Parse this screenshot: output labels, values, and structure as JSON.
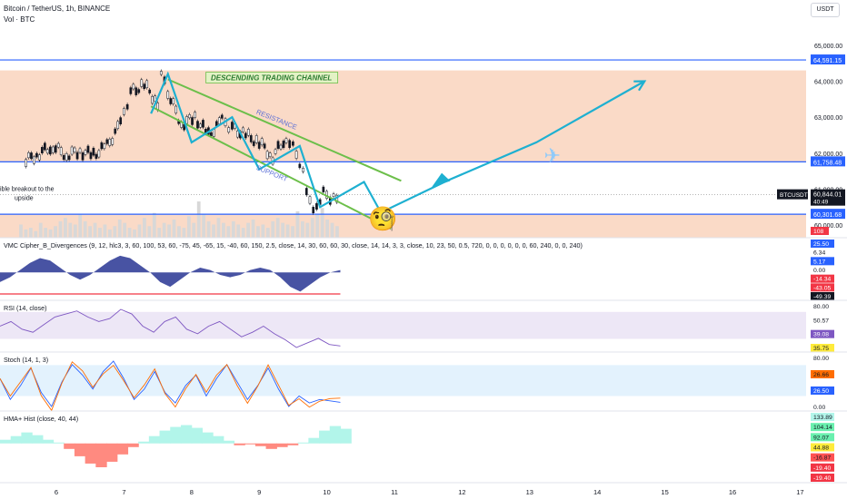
{
  "header": {
    "symbol_line": "Bitcoin / TetherUS, 1h, BINANCE",
    "volume_label": "Vol · BTC",
    "currency_button": "USDT"
  },
  "annotations": {
    "channel_label": "DESCENDING TRADING CHANNEL",
    "resistance": "RESISTANCE",
    "support": "SUPPORT",
    "breakout_note_1": "ible breakout to the",
    "breakout_note_2": "upside",
    "emoji_face": "🧐",
    "emoji_plane": "✈"
  },
  "colors": {
    "zone_fill": "#f9d3bd",
    "level_line": "#2962ff",
    "channel_line": "#6cbf4a",
    "path_line": "#1eb0d1",
    "up_candle": "#131722",
    "down_candle": "#131722",
    "volume_bar": "#d8d8d8"
  },
  "chart_data": {
    "type": "line",
    "x_ticks": [
      "6",
      "7",
      "8",
      "9",
      "10",
      "11",
      "12",
      "13",
      "14",
      "15",
      "16",
      "17"
    ],
    "price_axis": {
      "ticks": [
        "65,000.00",
        "64,000.00",
        "63,000.00",
        "62,000.00",
        "61,000.00",
        "60,000.00"
      ],
      "tick_values": [
        65000,
        64000,
        63000,
        62000,
        61000,
        60000
      ],
      "ylim": [
        59650,
        65500
      ]
    },
    "horizontal_levels": [
      {
        "value": 64591.15,
        "label": "64,591.15"
      },
      {
        "value": 61758.48,
        "label": "61,758.48"
      },
      {
        "value": 60301.68,
        "label": "60,301.68"
      }
    ],
    "current_price": {
      "symbol": "BTCUSDT",
      "value": "60,844.01",
      "countdown": "40:49"
    },
    "zones": [
      {
        "from": 61758.48,
        "to": 64300
      },
      {
        "from": 59650,
        "to": 60301.68
      }
    ],
    "price_series": {
      "x": [
        5.55,
        5.75,
        5.95,
        6.15,
        6.35,
        6.55,
        6.75,
        6.95,
        7.1,
        7.3,
        7.5,
        7.55,
        7.65,
        7.85,
        8.05,
        8.25,
        8.45,
        8.6,
        8.8,
        9.0,
        9.2,
        9.4,
        9.55,
        9.65,
        9.75,
        9.85,
        9.95,
        10.05,
        10.2
      ],
      "close": [
        61800,
        62000,
        62200,
        61950,
        62050,
        61950,
        62200,
        62800,
        63700,
        63900,
        63400,
        64350,
        63700,
        62800,
        63000,
        62500,
        62900,
        62700,
        62500,
        62300,
        61900,
        62450,
        62000,
        61500,
        60600,
        60400,
        60900,
        60650,
        60850
      ]
    },
    "channel_lines": [
      {
        "from": [
          7.65,
          64050
        ],
        "to": [
          11.1,
          61230
        ]
      },
      {
        "from": [
          7.4,
          63300
        ],
        "to": [
          10.95,
          59900
        ]
      }
    ],
    "drawn_path": [
      [
        7.4,
        63100
      ],
      [
        7.65,
        64200
      ],
      [
        8.0,
        62300
      ],
      [
        8.6,
        63000
      ],
      [
        9.0,
        61550
      ],
      [
        9.6,
        62200
      ],
      [
        9.9,
        60500
      ],
      [
        10.55,
        61200
      ],
      [
        10.8,
        60350
      ],
      [
        11.8,
        61250
      ],
      [
        13.1,
        62300
      ],
      [
        14.7,
        64000
      ]
    ],
    "volume_series": [
      8,
      5,
      6,
      4,
      9,
      6,
      5,
      7,
      10,
      12,
      9,
      8,
      14,
      10,
      7,
      9,
      6,
      8,
      5,
      7,
      11,
      9,
      6,
      5,
      8,
      12,
      7,
      15,
      6,
      9,
      8,
      11,
      7,
      6,
      13,
      9,
      22,
      14,
      10,
      8,
      12,
      9,
      7,
      10,
      8,
      6,
      9,
      11,
      7,
      8,
      6,
      10,
      12,
      9,
      8,
      7,
      16,
      10,
      9,
      12,
      14,
      18,
      11,
      9,
      7
    ],
    "indicators": [
      {
        "name": "VMC Cipher_B_Divergences (9, 12, hlc3, 3, 60, 100, 53, 60, -75, 45, -65, 15, -40, 60, 150, 2.5, close, 14, 30, 60, 60, 30, close, 14, 14, 3, 3, close, 10, 23, 50, 0.5, 720, 0, 0, 0, 0, 0, 0, 60, 240, 0, 0, 240)",
        "ticks": [
          "25.50",
          "6.34",
          "5.17",
          "0.00",
          "-14.34",
          "-43.05",
          "-49.39"
        ],
        "top_value": "108",
        "values": [
          -20,
          -10,
          5,
          20,
          30,
          25,
          10,
          -5,
          -15,
          -5,
          10,
          25,
          35,
          30,
          15,
          0,
          -20,
          -30,
          -15,
          0,
          10,
          5,
          -5,
          -10,
          -5,
          5,
          10,
          5,
          -10,
          -30,
          -40,
          -25,
          -10,
          0,
          5
        ]
      },
      {
        "name": "RSI (14, close)",
        "ticks": [
          "80.00",
          "50.57",
          "39.08",
          "35.75"
        ],
        "values": [
          52,
          55,
          50,
          48,
          53,
          58,
          60,
          62,
          58,
          55,
          57,
          63,
          60,
          52,
          48,
          55,
          58,
          50,
          47,
          52,
          55,
          50,
          45,
          48,
          52,
          47,
          43,
          38,
          41,
          44,
          40,
          39
        ]
      },
      {
        "name": "Stoch (14, 1, 3)",
        "ticks": [
          "80.00",
          "26.66",
          "26.50",
          "0.00"
        ],
        "values": [
          60,
          30,
          50,
          75,
          40,
          20,
          55,
          80,
          65,
          45,
          70,
          85,
          60,
          30,
          45,
          70,
          40,
          25,
          50,
          65,
          35,
          60,
          80,
          55,
          30,
          50,
          75,
          45,
          20,
          35,
          25,
          30,
          28,
          26
        ]
      },
      {
        "name": "HMA+ Hist (close, 40, 44)",
        "ticks": [
          "133.89",
          "104.14",
          "92.07",
          "44.88",
          "-16.87",
          "-19.40",
          "-19.40"
        ],
        "values": [
          20,
          40,
          60,
          45,
          20,
          5,
          -30,
          -70,
          -110,
          -130,
          -100,
          -60,
          -20,
          10,
          40,
          70,
          90,
          100,
          85,
          60,
          40,
          15,
          -10,
          -5,
          -15,
          -30,
          -20,
          -10,
          5,
          30,
          70,
          95,
          80
        ]
      }
    ]
  }
}
